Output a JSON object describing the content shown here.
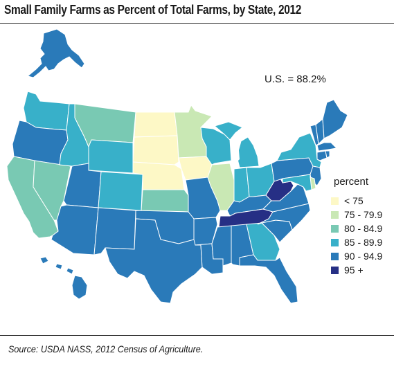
{
  "title": "Small Family Farms as Percent of Total Farms, by State, 2012",
  "us_total": "U.S. = 88.2%",
  "legend": {
    "title": "percent",
    "classes": [
      {
        "label": "< 75",
        "color": "#fdf8c6"
      },
      {
        "label": "75 - 79.9",
        "color": "#c9e8b4"
      },
      {
        "label": "80 - 84.9",
        "color": "#79c9b3"
      },
      {
        "label": "85 - 89.9",
        "color": "#38b0c9"
      },
      {
        "label": "90 - 94.9",
        "color": "#2a7ab9"
      },
      {
        "label": "95 +",
        "color": "#262f85"
      }
    ]
  },
  "states": {
    "AK": 4,
    "HI": 4,
    "WA": 3,
    "OR": 4,
    "CA": 2,
    "NV": 2,
    "ID": 3,
    "MT": 2,
    "WY": 3,
    "UT": 4,
    "CO": 3,
    "AZ": 4,
    "NM": 4,
    "ND": 0,
    "SD": 0,
    "NE": 0,
    "KS": 2,
    "OK": 4,
    "TX": 4,
    "MN": 1,
    "IA": 0,
    "MO": 4,
    "AR": 4,
    "LA": 4,
    "WI": 3,
    "IL": 1,
    "MI": 3,
    "IN": 3,
    "OH": 3,
    "KY": 4,
    "TN": 5,
    "MS": 4,
    "AL": 4,
    "GA": 3,
    "FL": 4,
    "SC": 4,
    "NC": 4,
    "VA": 4,
    "WV": 5,
    "PA": 4,
    "NY": 3,
    "ME": 4,
    "VT": 4,
    "NH": 4,
    "MA": 4,
    "CT": 4,
    "RI": 4,
    "NJ": 4,
    "DE": 1,
    "MD": 3
  },
  "source": "Source: USDA NASS, 2012 Census of Agriculture."
}
